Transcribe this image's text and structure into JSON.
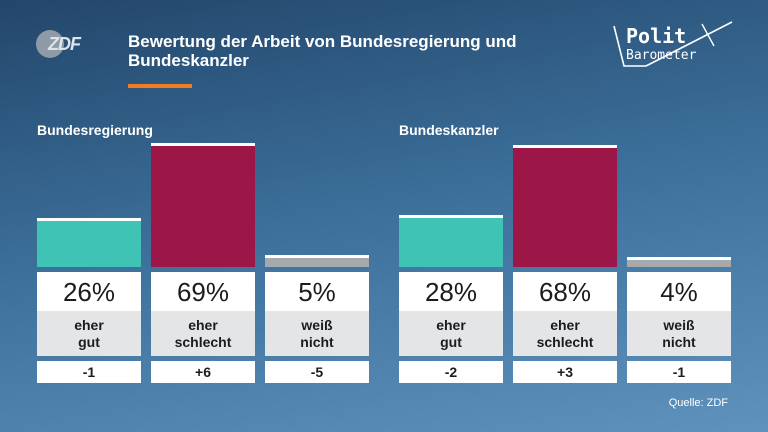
{
  "header": {
    "logo_text": "ZDF",
    "title": "Bewertung der Arbeit von Bundesregierung und Bundeskanzler",
    "brand_line1": "Polit",
    "brand_line2": "Barometer"
  },
  "colors": {
    "accent": "#f07d1f",
    "good": "#3fc3b5",
    "bad": "#9c1748",
    "unknown": "#a7aaad"
  },
  "chart_data": [
    {
      "type": "bar",
      "title": "Bundesregierung",
      "categories": [
        "eher\ngut",
        "eher\nschlecht",
        "weiß\nnicht"
      ],
      "values": [
        26,
        69,
        5
      ],
      "value_labels": [
        "26%",
        "69%",
        "5%"
      ],
      "changes": [
        "-1",
        "+6",
        "-5"
      ],
      "ylim": [
        0,
        69
      ]
    },
    {
      "type": "bar",
      "title": "Bundeskanzler",
      "categories": [
        "eher\ngut",
        "eher\nschlecht",
        "weiß\nnicht"
      ],
      "values": [
        28,
        68,
        4
      ],
      "value_labels": [
        "28%",
        "68%",
        "4%"
      ],
      "changes": [
        "-2",
        "+3",
        "-1"
      ],
      "ylim": [
        0,
        69
      ]
    }
  ],
  "footer": {
    "source": "Quelle: ZDF"
  }
}
